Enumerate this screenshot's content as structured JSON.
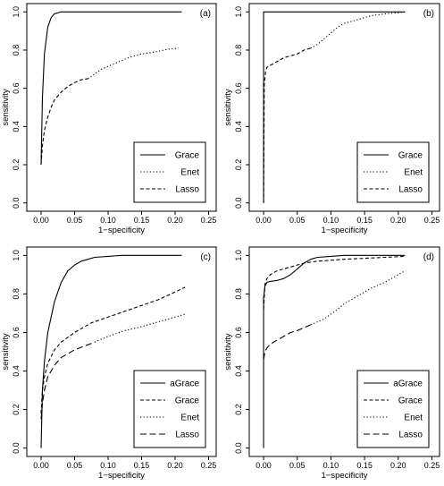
{
  "chart_data": [
    {
      "type": "line",
      "panel_label": "(a)",
      "xlabel": "1−specificity",
      "ylabel": "sensitivity",
      "xlim": [
        -0.01,
        0.25
      ],
      "ylim": [
        0.0,
        1.0
      ],
      "x_ticks": [
        "0.00",
        "0.05",
        "0.10",
        "0.15",
        "0.20",
        "0.25"
      ],
      "y_ticks": [
        "0.0",
        "0.2",
        "0.4",
        "0.6",
        "0.8",
        "1.0"
      ],
      "legend": "bottom-right",
      "series": [
        {
          "name": "Grace",
          "style": "solid",
          "x": [
            0,
            0.002,
            0.005,
            0.01,
            0.015,
            0.02,
            0.03,
            0.04,
            0.06,
            0.1,
            0.15,
            0.21
          ],
          "y": [
            0.2,
            0.55,
            0.78,
            0.92,
            0.97,
            0.99,
            1.0,
            1.0,
            1.0,
            1.0,
            1.0,
            1.0
          ]
        },
        {
          "name": "Enet",
          "style": "dotted",
          "x": [
            0.07,
            0.09,
            0.11,
            0.13,
            0.15,
            0.17,
            0.19,
            0.205
          ],
          "y": [
            0.65,
            0.7,
            0.73,
            0.76,
            0.78,
            0.79,
            0.805,
            0.81
          ]
        },
        {
          "name": "Lasso",
          "style": "dashed",
          "x": [
            0,
            0.002,
            0.005,
            0.01,
            0.015,
            0.02,
            0.03,
            0.04,
            0.05,
            0.06,
            0.07
          ],
          "y": [
            0.2,
            0.3,
            0.38,
            0.45,
            0.5,
            0.54,
            0.58,
            0.61,
            0.63,
            0.645,
            0.65
          ]
        }
      ]
    },
    {
      "type": "line",
      "panel_label": "(b)",
      "xlabel": "1−specificity",
      "ylabel": "sensitivity",
      "xlim": [
        -0.01,
        0.25
      ],
      "ylim": [
        0.0,
        1.0
      ],
      "x_ticks": [
        "0.00",
        "0.05",
        "0.10",
        "0.15",
        "0.20",
        "0.25"
      ],
      "y_ticks": [
        "0.0",
        "0.2",
        "0.4",
        "0.6",
        "0.8",
        "1.0"
      ],
      "legend": "bottom-right",
      "series": [
        {
          "name": "Grace",
          "style": "solid",
          "x": [
            0,
            0,
            0.21
          ],
          "y": [
            0.0,
            1.0,
            1.0
          ]
        },
        {
          "name": "Enet",
          "style": "dotted",
          "x": [
            0.07,
            0.08,
            0.09,
            0.1,
            0.11,
            0.12,
            0.14,
            0.16,
            0.18,
            0.2,
            0.21
          ],
          "y": [
            0.81,
            0.83,
            0.86,
            0.89,
            0.92,
            0.94,
            0.96,
            0.98,
            0.99,
            0.995,
            1.0
          ]
        },
        {
          "name": "Lasso",
          "style": "dashed",
          "x": [
            0,
            0.001,
            0.003,
            0.005,
            0.01,
            0.02,
            0.03,
            0.04,
            0.05,
            0.06,
            0.07
          ],
          "y": [
            0.0,
            0.62,
            0.69,
            0.71,
            0.72,
            0.74,
            0.76,
            0.77,
            0.78,
            0.8,
            0.81
          ]
        }
      ]
    },
    {
      "type": "line",
      "panel_label": "(c)",
      "xlabel": "1−specificity",
      "ylabel": "sensitivity",
      "xlim": [
        -0.01,
        0.25
      ],
      "ylim": [
        0.0,
        1.0
      ],
      "x_ticks": [
        "0.00",
        "0.05",
        "0.10",
        "0.15",
        "0.20",
        "0.25"
      ],
      "y_ticks": [
        "0.0",
        "0.2",
        "0.4",
        "0.6",
        "0.8",
        "1.0"
      ],
      "legend": "bottom-right",
      "series": [
        {
          "name": "aGrace",
          "style": "solid",
          "x": [
            0,
            0.002,
            0.005,
            0.01,
            0.02,
            0.03,
            0.04,
            0.05,
            0.06,
            0.07,
            0.08,
            0.1,
            0.12,
            0.15,
            0.21
          ],
          "y": [
            0.0,
            0.3,
            0.45,
            0.6,
            0.76,
            0.86,
            0.92,
            0.95,
            0.97,
            0.98,
            0.99,
            0.995,
            1.0,
            1.0,
            1.0
          ]
        },
        {
          "name": "Grace",
          "style": "dashed",
          "x": [
            0,
            0.002,
            0.005,
            0.01,
            0.02,
            0.03,
            0.05,
            0.075,
            0.1,
            0.125,
            0.15,
            0.175,
            0.2,
            0.215
          ],
          "y": [
            0.18,
            0.3,
            0.37,
            0.44,
            0.51,
            0.55,
            0.6,
            0.65,
            0.68,
            0.71,
            0.74,
            0.77,
            0.81,
            0.835
          ]
        },
        {
          "name": "Enet",
          "style": "dotted",
          "x": [
            0.08,
            0.1,
            0.125,
            0.15,
            0.175,
            0.2,
            0.215
          ],
          "y": [
            0.55,
            0.58,
            0.61,
            0.63,
            0.655,
            0.68,
            0.695
          ]
        },
        {
          "name": "Lasso",
          "style": "dashed-long",
          "x": [
            0,
            0.002,
            0.005,
            0.01,
            0.02,
            0.03,
            0.04,
            0.05,
            0.065,
            0.08
          ],
          "y": [
            0.15,
            0.23,
            0.3,
            0.37,
            0.43,
            0.47,
            0.49,
            0.51,
            0.53,
            0.55
          ]
        }
      ]
    },
    {
      "type": "line",
      "panel_label": "(d)",
      "xlabel": "1−specificity",
      "ylabel": "sensitivity",
      "xlim": [
        -0.01,
        0.25
      ],
      "ylim": [
        0.0,
        1.0
      ],
      "x_ticks": [
        "0.00",
        "0.05",
        "0.10",
        "0.15",
        "0.20",
        "0.25"
      ],
      "y_ticks": [
        "0.0",
        "0.2",
        "0.4",
        "0.6",
        "0.8",
        "1.0"
      ],
      "legend": "bottom-right",
      "series": [
        {
          "name": "aGrace",
          "style": "solid",
          "x": [
            0,
            0,
            0.002,
            0.005,
            0.01,
            0.02,
            0.03,
            0.04,
            0.05,
            0.06,
            0.07,
            0.08,
            0.1,
            0.12,
            0.15,
            0.21
          ],
          "y": [
            0.0,
            0.78,
            0.84,
            0.86,
            0.865,
            0.87,
            0.88,
            0.9,
            0.93,
            0.96,
            0.98,
            0.99,
            0.995,
            1.0,
            1.0,
            1.0
          ]
        },
        {
          "name": "Grace",
          "style": "dashed",
          "x": [
            0,
            0.002,
            0.005,
            0.01,
            0.02,
            0.03,
            0.04,
            0.05,
            0.06,
            0.07,
            0.08,
            0.1,
            0.12,
            0.15,
            0.18,
            0.21
          ],
          "y": [
            0.72,
            0.85,
            0.88,
            0.9,
            0.92,
            0.93,
            0.94,
            0.95,
            0.96,
            0.965,
            0.97,
            0.975,
            0.98,
            0.985,
            0.99,
            0.995
          ]
        },
        {
          "name": "Enet",
          "style": "dotted",
          "x": [
            0.07,
            0.08,
            0.09,
            0.1,
            0.11,
            0.12,
            0.14,
            0.16,
            0.18,
            0.2,
            0.21
          ],
          "y": [
            0.64,
            0.655,
            0.67,
            0.695,
            0.72,
            0.75,
            0.79,
            0.83,
            0.86,
            0.9,
            0.92
          ]
        },
        {
          "name": "Lasso",
          "style": "dashed-long",
          "x": [
            0,
            0.002,
            0.005,
            0.01,
            0.02,
            0.03,
            0.04,
            0.05,
            0.06,
            0.07
          ],
          "y": [
            0.46,
            0.5,
            0.52,
            0.54,
            0.56,
            0.58,
            0.6,
            0.61,
            0.625,
            0.64
          ]
        }
      ]
    }
  ]
}
